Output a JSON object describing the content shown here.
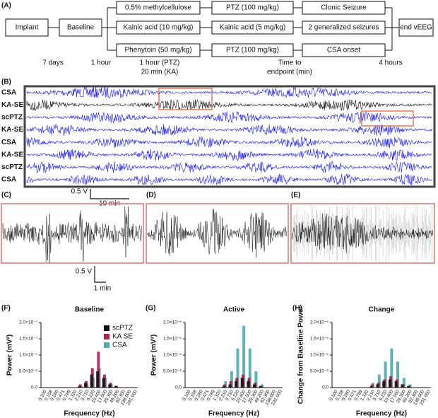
{
  "panel_a": {
    "label": "(A)",
    "implant": "Implant",
    "baseline": "Baseline",
    "rows": [
      [
        "0.5% methylcellulose",
        "PTZ (100 mg/kg)",
        "Clonic Seizure"
      ],
      [
        "Kainic acid (10 mg/kg)",
        "Kainic acid (5 mg/kg)",
        "2 generalized seizures"
      ],
      [
        "Phenytoin (50 mg/kg)",
        "PTZ (100 mg/kg)",
        "CSA onset"
      ]
    ],
    "end": "end vEEG",
    "timeline": [
      "7 days",
      "1 hour",
      [
        "1 hour (PTZ)",
        "20 min (KA)"
      ],
      [
        "Time to",
        "endpoint (min)"
      ],
      "4 hours"
    ]
  },
  "panel_b": {
    "label": "(B)",
    "rows": [
      "CSA",
      "KA-SE",
      "scPTZ",
      "KA-SE",
      "CSA",
      "KA-SE",
      "scPTZ",
      "CSA"
    ],
    "scale_v": "0.5 V",
    "scale_t": "10 min"
  },
  "panels_cde": {
    "labels": [
      "(C)",
      "(D)",
      "(E)"
    ],
    "scale_v": "0.5 V",
    "scale_t": "1 min"
  },
  "chart_data": [
    {
      "type": "bar",
      "panel_label": "(F)",
      "title": "Baseline",
      "x_label": "Frequency (Hz)",
      "y_label": "Power (mV²)",
      "categories": [
        "0.100",
        "0.158",
        "0.280",
        "0.471",
        "0.789",
        "1.320",
        "2.210",
        "3.710",
        "6.220",
        "10.400",
        "17.500",
        "29.300",
        "49.200",
        "82.300",
        "138.000",
        "231.000"
      ],
      "series": [
        {
          "name": "scPTZ",
          "color": "#111111",
          "values": [
            0,
            0,
            0,
            0,
            0,
            0,
            5e-09,
            1.5e-08,
            4e-08,
            5e-08,
            3e-08,
            1e-08,
            5e-09,
            0,
            0,
            0
          ]
        },
        {
          "name": "KA SE",
          "color": "#b0204a",
          "values": [
            0,
            0,
            0,
            0,
            0,
            0,
            1e-08,
            2e-08,
            6e-08,
            1.1e-07,
            4e-08,
            1.5e-08,
            5e-09,
            0,
            0,
            0
          ]
        },
        {
          "name": "CSA",
          "color": "#4fa8b0",
          "values": [
            0,
            0,
            0,
            0,
            0,
            0,
            5e-09,
            1e-08,
            3e-08,
            6e-08,
            3e-08,
            1e-08,
            0,
            0,
            0,
            0
          ]
        }
      ],
      "ylim": [
        0,
        2e-07
      ],
      "yticks": [
        {
          "value": 0,
          "label": "0.0"
        },
        {
          "value": 5e-08,
          "label": "5.0×10⁻⁸"
        },
        {
          "value": 1e-07,
          "label": "1.0×10⁻⁷"
        },
        {
          "value": 1.5e-07,
          "label": "1.5×10⁻⁷"
        },
        {
          "value": 2e-07,
          "label": "2.0×10⁻⁷"
        }
      ],
      "legend": "upper right"
    },
    {
      "type": "bar",
      "panel_label": "(G)",
      "title": "Active",
      "x_label": "Frequency (Hz)",
      "y_label": "Power (mV²)",
      "categories": [
        "0.100",
        "0.158",
        "0.280",
        "0.471",
        "0.789",
        "1.320",
        "2.210",
        "3.710",
        "6.220",
        "10.400",
        "17.500",
        "29.300",
        "49.200",
        "82.300",
        "138.000",
        "231.000"
      ],
      "series": [
        {
          "color": "#111111",
          "values": [
            0,
            0,
            0,
            0,
            0,
            0,
            5e-07,
            1e-06,
            2e-06,
            3e-06,
            2e-06,
            1e-06,
            5e-07,
            0,
            0,
            0
          ]
        },
        {
          "color": "#b0204a",
          "values": [
            0,
            0,
            0,
            0,
            0,
            0,
            1e-06,
            2e-06,
            3e-06,
            4e-06,
            3e-06,
            1.5e-06,
            5e-07,
            0,
            0,
            0
          ]
        },
        {
          "color": "#4fa8b0",
          "values": [
            0,
            0,
            0,
            0,
            0,
            0,
            2e-06,
            5e-06,
            1.2e-05,
            1.9e-05,
            1.2e-05,
            5e-06,
            1e-06,
            0,
            0,
            0
          ]
        }
      ],
      "ylim": [
        0,
        2e-05
      ],
      "yticks": [
        {
          "value": 0,
          "label": "0.0"
        },
        {
          "value": 5e-06,
          "label": "5.0×10⁻⁶"
        },
        {
          "value": 1e-05,
          "label": "1.0×10⁻⁵"
        },
        {
          "value": 1.5e-05,
          "label": "1.5×10⁻⁵"
        },
        {
          "value": 2e-05,
          "label": "2.0×10⁻⁵"
        }
      ]
    },
    {
      "type": "bar",
      "panel_label": "(H)",
      "title": "Change",
      "x_label": "Frequency (Hz)",
      "y_label": "Change from Baseline Power",
      "categories": [
        "0.100",
        "0.158",
        "0.280",
        "0.471",
        "0.789",
        "1.320",
        "2.210",
        "3.710",
        "6.220",
        "10.400",
        "17.500",
        "29.300",
        "49.200",
        "82.300",
        "138.000",
        "231.000"
      ],
      "series": [
        {
          "color": "#111111",
          "values": [
            0,
            0,
            0,
            0,
            0,
            0,
            5e-07,
            1e-06,
            2e-06,
            2.5e-06,
            2e-06,
            1e-06,
            5e-07,
            0,
            0,
            0
          ]
        },
        {
          "color": "#b0204a",
          "values": [
            0,
            0,
            0,
            0,
            0,
            0,
            1e-06,
            1.5e-06,
            2.5e-06,
            3.5e-06,
            2.5e-06,
            1e-06,
            5e-07,
            0,
            0,
            0
          ]
        },
        {
          "color": "#4fa8b0",
          "values": [
            0,
            0,
            0,
            0,
            0,
            0,
            1.5e-06,
            4e-06,
            8e-06,
            1.2e-05,
            8e-06,
            3e-06,
            1e-06,
            0,
            0,
            0
          ]
        }
      ],
      "ylim": [
        0,
        2e-05
      ],
      "yticks": [
        {
          "value": 0,
          "label": "0.0"
        },
        {
          "value": 5e-06,
          "label": "5.0×10⁻⁶"
        },
        {
          "value": 1e-05,
          "label": "1.0×10⁻⁵"
        },
        {
          "value": 1.5e-05,
          "label": "1.5×10⁻⁵"
        },
        {
          "value": 2e-05,
          "label": "2.0×10⁻⁵"
        }
      ]
    }
  ]
}
